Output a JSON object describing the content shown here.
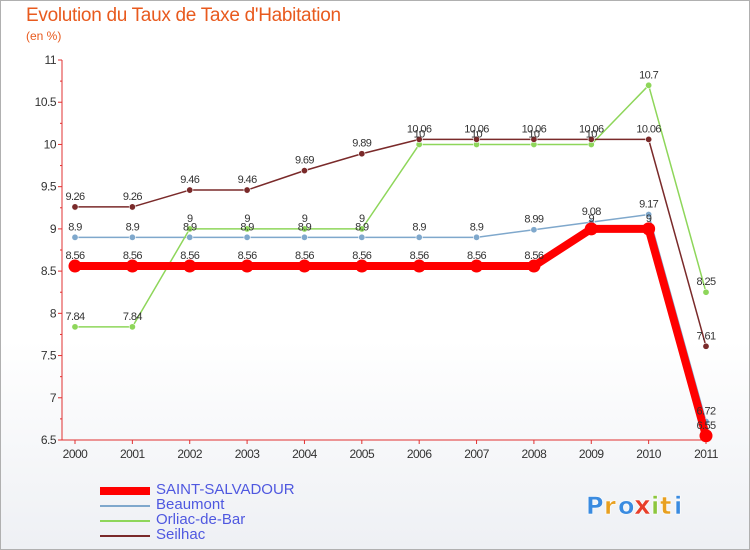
{
  "chart_data": {
    "type": "line",
    "title": "Evolution du Taux de Taxe d'Habitation",
    "subtitle": "(en %)",
    "x": [
      "2000",
      "2001",
      "2002",
      "2003",
      "2004",
      "2005",
      "2006",
      "2007",
      "2008",
      "2009",
      "2010",
      "2011"
    ],
    "ylim": [
      6.5,
      11
    ],
    "yticks": [
      "6.5",
      "7",
      "7.5",
      "8",
      "8.5",
      "9",
      "9.5",
      "10",
      "10.5",
      "11"
    ],
    "grid": false,
    "legend_position": "bottom-left",
    "series": [
      {
        "name": "SAINT-SALVADOUR",
        "color": "#ff0000",
        "values": [
          8.56,
          8.56,
          8.56,
          8.56,
          8.56,
          8.56,
          8.56,
          8.56,
          8.56,
          9.0,
          9.0,
          6.55
        ],
        "labels": [
          "8.56",
          "8.56",
          "8.56",
          "8.56",
          "8.56",
          "8.56",
          "8.56",
          "8.56",
          "8.56",
          "9",
          "9",
          "6.55"
        ]
      },
      {
        "name": "Beaumont",
        "color": "#7fa8cc",
        "values": [
          8.9,
          8.9,
          8.9,
          8.9,
          8.9,
          8.9,
          8.9,
          8.9,
          8.99,
          9.08,
          9.17,
          6.72
        ],
        "labels": [
          "8.9",
          "8.9",
          "8.9",
          "8.9",
          "8.9",
          "8.9",
          "8.9",
          "8.9",
          "8.99",
          "9.08",
          "9.17",
          "6.72"
        ]
      },
      {
        "name": "Orliac-de-Bar",
        "color": "#8ed65a",
        "values": [
          7.84,
          7.84,
          9,
          9,
          9,
          9,
          10,
          10,
          10,
          10,
          10.7,
          8.25
        ],
        "labels": [
          "7.84",
          "7.84",
          "9",
          "9",
          "9",
          "9",
          "10",
          "10",
          "10",
          "10",
          "10.7",
          "8.25"
        ]
      },
      {
        "name": "Seilhac",
        "color": "#7a2a2a",
        "values": [
          9.26,
          9.26,
          9.46,
          9.46,
          9.69,
          9.89,
          10.06,
          10.06,
          10.06,
          10.06,
          10.06,
          7.61
        ],
        "labels": [
          "9.26",
          "9.26",
          "9.46",
          "9.46",
          "9.69",
          "9.89",
          "10.06",
          "10.06",
          "10.06",
          "10.06",
          "10.06",
          "7.61"
        ]
      }
    ]
  },
  "logo": {
    "letters": [
      "P",
      "r",
      "o",
      "x",
      "i",
      "t",
      "i"
    ],
    "colors": [
      "#3a8be0",
      "#e8a020",
      "#3a8be0",
      "#e83e2a",
      "#8cc63e",
      "#e8a020",
      "#3a8be0"
    ]
  }
}
